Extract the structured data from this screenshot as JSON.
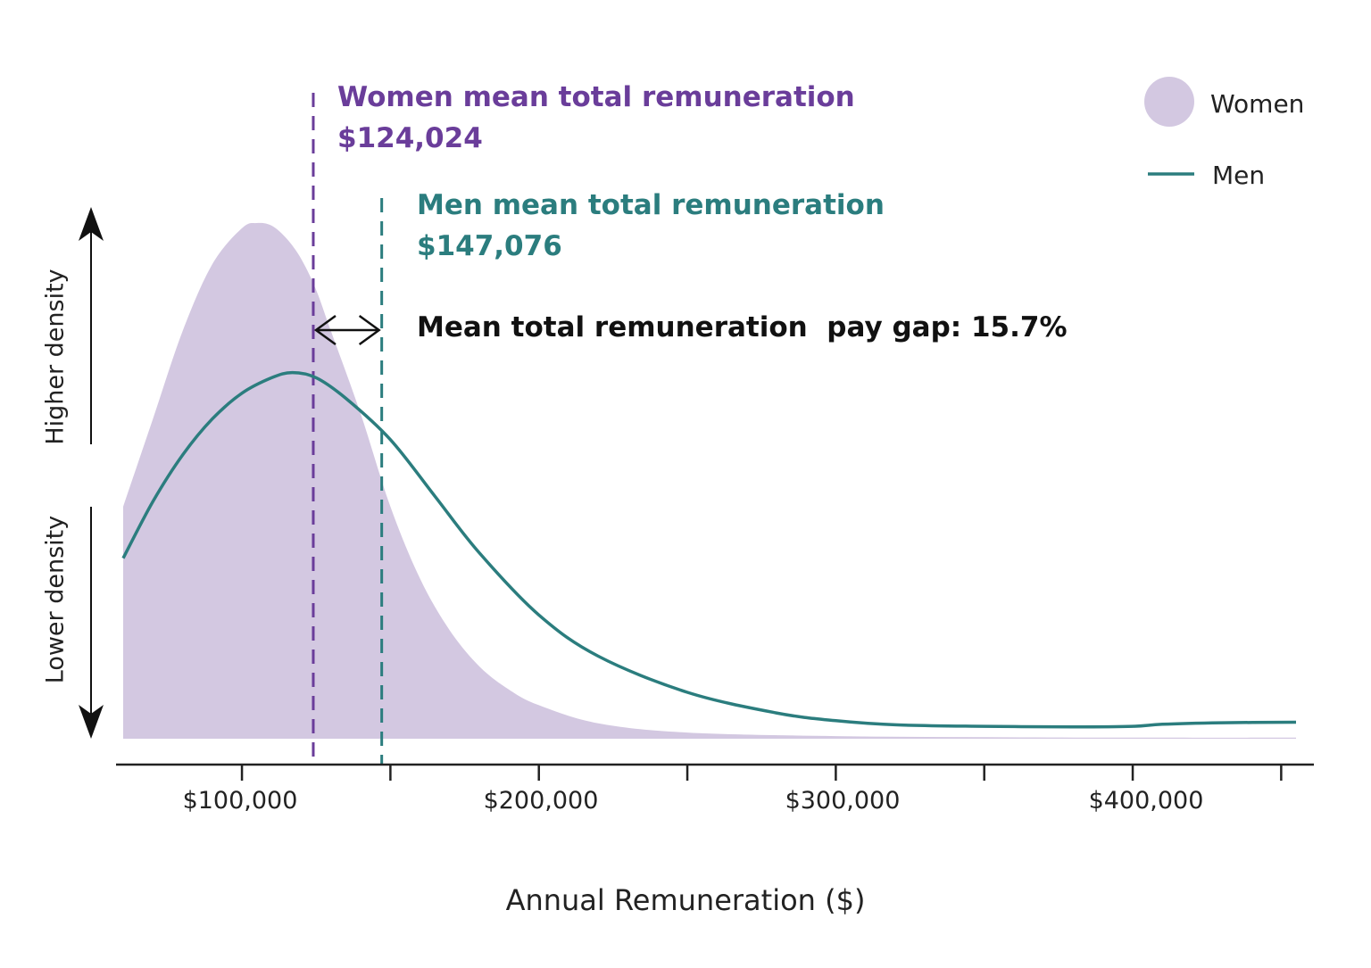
{
  "colors": {
    "women": "#d3c8e1",
    "men": "#2b7d7e",
    "women_text": "#6a3d9a",
    "men_text": "#2b7d7e",
    "axis": "#222222"
  },
  "chart_data": {
    "type": "area",
    "title": "",
    "xlabel": "Annual Remuneration ($)",
    "ylabel_top": "Higher density",
    "ylabel_bottom": "Lower density",
    "xlim": [
      60000,
      455000
    ],
    "ylim": [
      0,
      1
    ],
    "grid": false,
    "legend_position": "top-right",
    "xticks": [
      100000,
      150000,
      200000,
      250000,
      300000,
      350000,
      400000,
      450000
    ],
    "xtick_labels": [
      "$100,000",
      "",
      "$200,000",
      "",
      "$300,000",
      "",
      "$400,000",
      ""
    ],
    "series": [
      {
        "name": "Women",
        "style": "filled-area",
        "x": [
          60000,
          70000,
          80000,
          90000,
          100000,
          105000,
          110000,
          115000,
          120000,
          125000,
          130000,
          140000,
          150000,
          160000,
          170000,
          180000,
          190000,
          200000,
          220000,
          250000,
          300000,
          350000,
          400000,
          455000
        ],
        "y": [
          0.45,
          0.62,
          0.79,
          0.92,
          0.99,
          1.0,
          0.995,
          0.97,
          0.93,
          0.87,
          0.79,
          0.63,
          0.45,
          0.31,
          0.21,
          0.14,
          0.095,
          0.065,
          0.03,
          0.012,
          0.005,
          0.003,
          0.002,
          0.002
        ]
      },
      {
        "name": "Men",
        "style": "line",
        "x": [
          60000,
          70000,
          80000,
          90000,
          100000,
          110000,
          117000,
          125000,
          135000,
          150000,
          165000,
          180000,
          200000,
          220000,
          250000,
          280000,
          300000,
          320000,
          350000,
          380000,
          400000,
          410000,
          430000,
          455000
        ],
        "y": [
          0.35,
          0.46,
          0.55,
          0.62,
          0.67,
          0.7,
          0.71,
          0.7,
          0.66,
          0.58,
          0.47,
          0.36,
          0.24,
          0.16,
          0.09,
          0.05,
          0.035,
          0.027,
          0.024,
          0.023,
          0.024,
          0.028,
          0.031,
          0.032
        ]
      }
    ],
    "reference_lines": [
      {
        "series": "Women",
        "x": 124024,
        "label": "Women mean total remuneration",
        "value_label": "$124,024"
      },
      {
        "series": "Men",
        "x": 147076,
        "label": "Men mean total remuneration",
        "value_label": "$147,076"
      }
    ],
    "annotations": {
      "gap": "Mean total remuneration  pay gap: 15.7%"
    },
    "legend": [
      {
        "name": "Women",
        "marker": "circle"
      },
      {
        "name": "Men",
        "marker": "line"
      }
    ]
  }
}
